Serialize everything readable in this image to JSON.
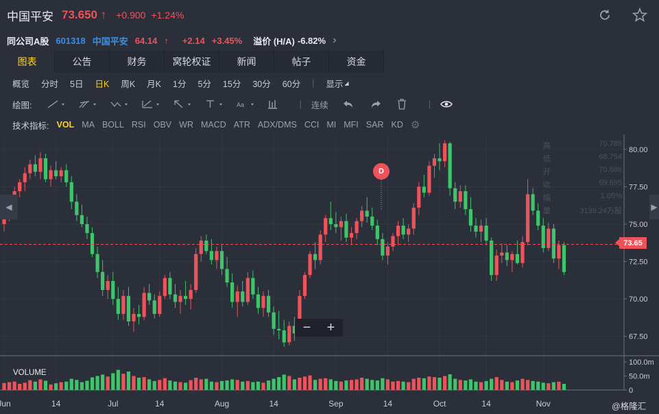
{
  "header": {
    "name": "中国平安",
    "price": "73.650",
    "change": "+0.900",
    "change_pct": "+1.24%"
  },
  "a_share": {
    "label": "同公司A股",
    "code": "601318",
    "name": "中国平安",
    "price": "64.14",
    "change": "+2.14",
    "change_pct": "+3.45%",
    "premium_label": "溢价 (H/A)",
    "premium_value": "-6.82%"
  },
  "tabs": [
    "图表",
    "公告",
    "财务",
    "窝轮权证",
    "新闻",
    "帖子",
    "资金"
  ],
  "active_tab": 0,
  "periods": [
    "概览",
    "分时",
    "5日",
    "日K",
    "周K",
    "月K",
    "1分",
    "5分",
    "15分",
    "30分",
    "60分",
    "|",
    "显示"
  ],
  "active_period": 3,
  "drawing": {
    "label": "绘图:",
    "continuous": "连续"
  },
  "indicators": {
    "label": "技术指标:",
    "items": [
      "VOL",
      "MA",
      "BOLL",
      "RSI",
      "OBV",
      "WR",
      "MACD",
      "ATR",
      "ADX/DMS",
      "CCI",
      "MI",
      "MFI",
      "SAR",
      "KD"
    ],
    "active": 0
  },
  "info_panel": [
    {
      "label": "高",
      "value": "70.785"
    },
    {
      "label": "低",
      "value": "68.754"
    },
    {
      "label": "开",
      "value": "70.686"
    },
    {
      "label": "收",
      "value": "69.695"
    },
    {
      "label": "幅",
      "value": "1.05%"
    },
    {
      "label": "量",
      "value": "3139.24万股"
    }
  ],
  "event_marker": "D",
  "last_price_tag": "73.65",
  "volume_label": "VOLUME",
  "watermark": "@格隆汇",
  "colors": {
    "up": "#f0525a",
    "down": "#3fc46b",
    "accent": "#ffd21f"
  },
  "chart_data": {
    "type": "candlestick",
    "y_ticks": [
      "80.00",
      "77.50",
      "75.00",
      "72.50",
      "70.00",
      "67.50"
    ],
    "ylim": [
      66.25,
      81.0
    ],
    "volume_ticks": [
      "100.0m",
      "50.0m",
      "0"
    ],
    "volume_max": 110,
    "x_ticks": [
      {
        "i": 0,
        "label": "Jun"
      },
      {
        "i": 10,
        "label": "14"
      },
      {
        "i": 21,
        "label": "Jul"
      },
      {
        "i": 30,
        "label": "14"
      },
      {
        "i": 42,
        "label": "Aug"
      },
      {
        "i": 52,
        "label": "14"
      },
      {
        "i": 64,
        "label": "Sep"
      },
      {
        "i": 74,
        "label": "14"
      },
      {
        "i": 84,
        "label": "Oct"
      },
      {
        "i": 93,
        "label": "14"
      },
      {
        "i": 104,
        "label": "Nov"
      }
    ],
    "candles": [
      [
        75.0,
        76.2,
        74.5,
        75.8,
        25
      ],
      [
        75.8,
        76.5,
        75.2,
        76.3,
        28
      ],
      [
        76.3,
        77.5,
        75.8,
        77.2,
        30
      ],
      [
        77.2,
        78.0,
        76.8,
        77.8,
        22
      ],
      [
        77.8,
        78.8,
        77.2,
        78.4,
        26
      ],
      [
        78.4,
        79.3,
        78.0,
        79.0,
        35
      ],
      [
        79.0,
        79.6,
        78.2,
        78.5,
        30
      ],
      [
        78.5,
        79.8,
        78.0,
        79.4,
        38
      ],
      [
        79.4,
        79.7,
        77.8,
        78.0,
        33
      ],
      [
        78.0,
        78.9,
        77.5,
        78.6,
        20
      ],
      [
        78.6,
        79.2,
        78.0,
        78.2,
        24
      ],
      [
        78.2,
        78.8,
        77.8,
        78.6,
        28
      ],
      [
        78.6,
        79.0,
        77.5,
        77.8,
        30
      ],
      [
        77.8,
        78.2,
        76.0,
        76.5,
        40
      ],
      [
        76.5,
        77.0,
        75.2,
        75.6,
        36
      ],
      [
        75.6,
        76.3,
        74.8,
        75.0,
        28
      ],
      [
        75.0,
        75.5,
        74.0,
        74.4,
        33
      ],
      [
        74.4,
        74.8,
        72.8,
        73.0,
        45
      ],
      [
        73.0,
        73.5,
        71.4,
        71.8,
        50
      ],
      [
        71.8,
        72.6,
        70.2,
        70.6,
        55
      ],
      [
        70.6,
        71.6,
        70.0,
        71.2,
        48
      ],
      [
        71.2,
        71.8,
        69.6,
        70.0,
        60
      ],
      [
        70.0,
        70.8,
        68.6,
        69.0,
        72
      ],
      [
        69.0,
        70.6,
        68.6,
        70.2,
        58
      ],
      [
        70.2,
        70.8,
        68.2,
        68.5,
        66
      ],
      [
        68.5,
        69.4,
        67.8,
        69.0,
        50
      ],
      [
        69.0,
        69.6,
        68.3,
        68.8,
        44
      ],
      [
        68.8,
        70.8,
        68.6,
        70.4,
        46
      ],
      [
        70.4,
        71.0,
        69.6,
        69.9,
        38
      ],
      [
        69.9,
        70.3,
        68.7,
        69.0,
        32
      ],
      [
        69.0,
        70.5,
        68.8,
        70.2,
        36
      ],
      [
        70.2,
        71.6,
        70.0,
        71.4,
        42
      ],
      [
        71.4,
        71.8,
        70.0,
        70.3,
        34
      ],
      [
        70.3,
        71.0,
        69.4,
        69.8,
        30
      ],
      [
        69.8,
        70.6,
        69.0,
        70.2,
        28
      ],
      [
        70.2,
        71.2,
        69.6,
        70.0,
        26
      ],
      [
        70.0,
        71.0,
        69.3,
        70.6,
        35
      ],
      [
        70.6,
        73.4,
        70.4,
        73.0,
        44
      ],
      [
        73.0,
        74.2,
        72.5,
        73.9,
        38
      ],
      [
        73.9,
        74.3,
        73.0,
        73.2,
        40
      ],
      [
        73.2,
        74.0,
        72.3,
        72.6,
        30
      ],
      [
        72.6,
        73.5,
        72.0,
        73.2,
        28
      ],
      [
        73.2,
        73.6,
        71.6,
        72.0,
        32
      ],
      [
        72.0,
        72.8,
        70.8,
        71.1,
        34
      ],
      [
        71.1,
        71.7,
        69.4,
        69.8,
        38
      ],
      [
        69.8,
        70.9,
        68.8,
        70.5,
        36
      ],
      [
        70.5,
        71.2,
        69.5,
        69.8,
        30
      ],
      [
        69.8,
        71.8,
        69.6,
        71.4,
        32
      ],
      [
        71.4,
        71.9,
        70.0,
        70.3,
        28
      ],
      [
        70.3,
        70.8,
        69.0,
        69.4,
        30
      ],
      [
        69.4,
        70.5,
        68.8,
        70.2,
        26
      ],
      [
        70.2,
        70.6,
        68.8,
        69.1,
        34
      ],
      [
        69.1,
        69.5,
        67.6,
        68.0,
        40
      ],
      [
        68.0,
        69.2,
        67.3,
        67.9,
        46
      ],
      [
        67.9,
        68.6,
        66.8,
        67.1,
        55
      ],
      [
        67.1,
        68.5,
        66.9,
        68.2,
        50
      ],
      [
        68.2,
        68.8,
        67.2,
        67.7,
        38
      ],
      [
        67.7,
        70.6,
        67.5,
        70.2,
        44
      ],
      [
        70.2,
        71.8,
        70.0,
        71.6,
        48
      ],
      [
        71.6,
        73.2,
        71.4,
        73.0,
        52
      ],
      [
        73.0,
        73.8,
        72.0,
        72.6,
        36
      ],
      [
        72.6,
        74.6,
        72.3,
        74.3,
        40
      ],
      [
        74.3,
        75.6,
        73.8,
        75.4,
        42
      ],
      [
        75.4,
        76.5,
        74.6,
        75.0,
        38
      ],
      [
        75.0,
        75.8,
        74.4,
        74.8,
        32
      ],
      [
        74.8,
        75.5,
        73.9,
        75.2,
        30
      ],
      [
        75.2,
        75.7,
        73.8,
        74.1,
        34
      ],
      [
        74.1,
        74.8,
        73.6,
        74.4,
        36
      ],
      [
        74.4,
        75.4,
        74.0,
        75.2,
        38
      ],
      [
        75.2,
        76.2,
        74.8,
        75.9,
        44
      ],
      [
        75.9,
        76.8,
        75.1,
        75.5,
        40
      ],
      [
        75.5,
        76.1,
        74.6,
        74.9,
        36
      ],
      [
        74.9,
        75.3,
        73.6,
        74.0,
        34
      ],
      [
        74.0,
        74.4,
        72.6,
        72.9,
        42
      ],
      [
        72.9,
        73.8,
        72.3,
        73.5,
        38
      ],
      [
        73.5,
        74.4,
        73.2,
        74.2,
        30
      ],
      [
        74.2,
        75.2,
        73.6,
        74.9,
        32
      ],
      [
        74.9,
        75.4,
        74.0,
        74.3,
        30
      ],
      [
        74.3,
        75.0,
        73.8,
        74.7,
        28
      ],
      [
        74.7,
        76.4,
        74.3,
        76.1,
        40
      ],
      [
        76.1,
        77.8,
        75.6,
        77.5,
        44
      ],
      [
        77.5,
        78.3,
        76.8,
        77.1,
        42
      ],
      [
        77.1,
        79.2,
        76.9,
        78.9,
        48
      ],
      [
        78.9,
        79.7,
        78.1,
        79.4,
        46
      ],
      [
        79.4,
        80.4,
        78.6,
        79.2,
        44
      ],
      [
        79.2,
        80.6,
        78.8,
        80.4,
        50
      ],
      [
        80.4,
        80.5,
        76.9,
        77.4,
        56
      ],
      [
        77.4,
        77.8,
        76.0,
        76.5,
        40
      ],
      [
        76.5,
        77.6,
        76.1,
        77.2,
        36
      ],
      [
        77.2,
        77.6,
        75.6,
        76.0,
        34
      ],
      [
        76.0,
        76.8,
        74.5,
        74.9,
        38
      ],
      [
        74.9,
        75.4,
        74.1,
        74.5,
        30
      ],
      [
        74.5,
        75.3,
        73.8,
        74.9,
        28
      ],
      [
        74.9,
        75.4,
        73.6,
        73.9,
        32
      ],
      [
        73.9,
        74.1,
        71.2,
        71.6,
        40
      ],
      [
        71.6,
        73.3,
        71.2,
        72.9,
        46
      ],
      [
        72.9,
        73.7,
        72.4,
        73.1,
        36
      ],
      [
        73.1,
        73.6,
        72.2,
        72.6,
        30
      ],
      [
        72.6,
        73.2,
        71.8,
        73.0,
        28
      ],
      [
        73.0,
        73.9,
        72.3,
        72.4,
        34
      ],
      [
        72.4,
        74.2,
        72.1,
        73.8,
        40
      ],
      [
        73.8,
        78.0,
        73.6,
        77.0,
        36
      ],
      [
        77.0,
        77.4,
        75.6,
        75.9,
        32
      ],
      [
        75.9,
        76.4,
        74.6,
        74.9,
        30
      ],
      [
        74.9,
        75.4,
        73.1,
        73.4,
        26
      ],
      [
        73.4,
        75.1,
        73.2,
        74.7,
        24
      ],
      [
        74.7,
        75.0,
        72.4,
        72.7,
        28
      ],
      [
        72.7,
        73.9,
        72.0,
        73.6,
        30
      ],
      [
        73.6,
        73.8,
        71.6,
        71.8,
        22
      ]
    ]
  }
}
